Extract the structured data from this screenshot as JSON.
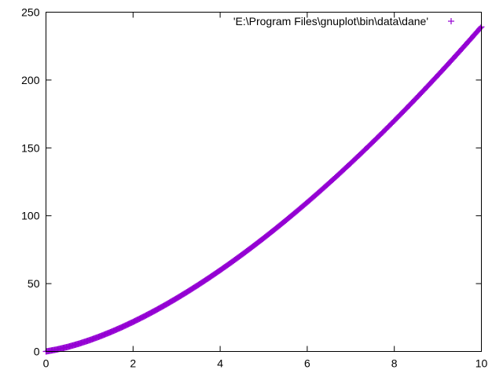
{
  "window": {
    "title": ""
  },
  "chart_data": {
    "type": "scatter",
    "title": "",
    "xlabel": "",
    "ylabel": "",
    "xlim": [
      0,
      10
    ],
    "ylim": [
      0,
      250
    ],
    "x_ticks": [
      "0",
      "2",
      "4",
      "6",
      "8",
      "10"
    ],
    "y_ticks": [
      "0",
      "50",
      "100",
      "150",
      "200",
      "250"
    ],
    "grid": false,
    "legend_position": "top-right",
    "marker": "+",
    "series": [
      {
        "name": "'E:\\Program Files\\gnuplot\\bin\\data\\dane'",
        "color": "#9400d3",
        "x": [
          0,
          0.25,
          0.5,
          0.75,
          1,
          1.25,
          1.5,
          1.75,
          2,
          2.25,
          2.5,
          2.75,
          3,
          3.25,
          3.5,
          3.75,
          4,
          4.25,
          4.5,
          4.75,
          5,
          5.25,
          5.5,
          5.75,
          6,
          6.25,
          6.5,
          6.75,
          7,
          7.25,
          7.5,
          7.75,
          8,
          8.25,
          8.5,
          8.75,
          9,
          9.25,
          9.5,
          9.75,
          10
        ],
        "y": [
          0,
          1.47,
          3.38,
          5.67,
          8.3,
          11.25,
          14.48,
          17.99,
          21.76,
          25.77,
          30.0,
          34.46,
          39.14,
          44.02,
          49.1,
          54.38,
          59.84,
          65.49,
          71.32,
          77.33,
          83.5,
          89.85,
          96.36,
          103.03,
          109.86,
          116.85,
          123.99,
          131.29,
          138.74,
          146.33,
          154.08,
          161.96,
          170.0,
          178.17,
          186.48,
          194.93,
          203.52,
          212.24,
          221.1,
          230.09,
          239.2
        ]
      }
    ]
  }
}
